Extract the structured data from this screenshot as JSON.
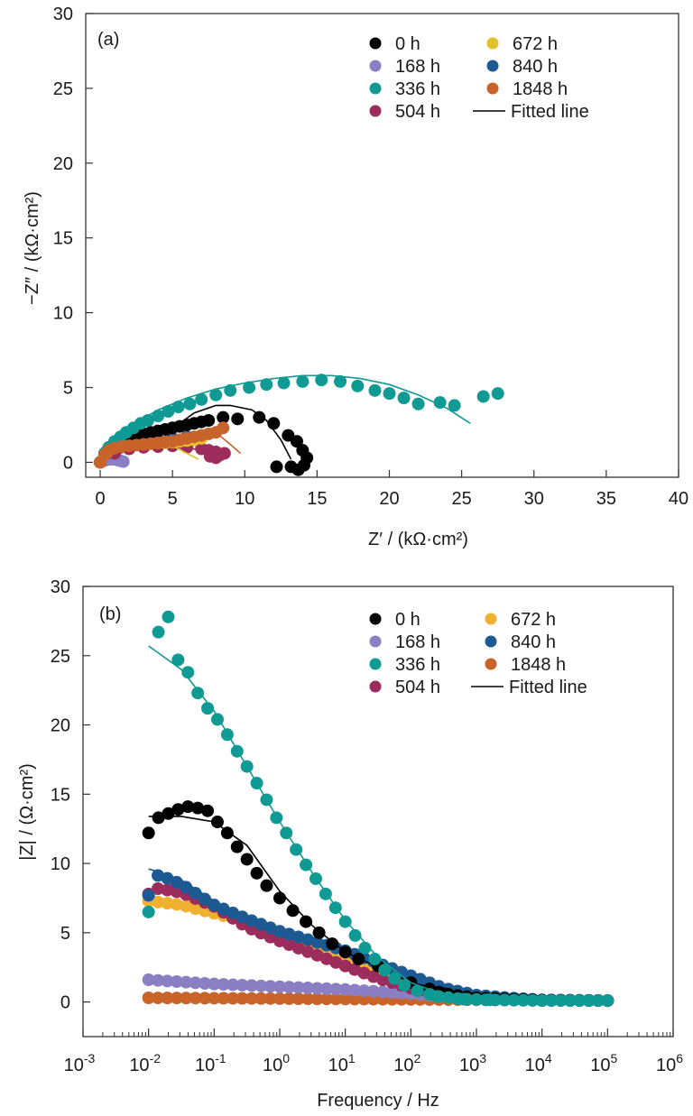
{
  "chart_data": [
    {
      "type": "scatter",
      "panel_label": "(a)",
      "title": "",
      "xlabel": "Z′ / (kΩ·cm²)",
      "ylabel": "−Z″ / (kΩ·cm²)",
      "xlim": [
        -1,
        40
      ],
      "ylim": [
        -1,
        30
      ],
      "xticks": [
        0,
        5,
        10,
        15,
        20,
        25,
        30,
        35,
        40
      ],
      "yticks": [
        0,
        5,
        10,
        15,
        20,
        25,
        30
      ],
      "grid": false,
      "legend_position": "top-right",
      "legend": [
        {
          "label": "0 h",
          "color": "#000000"
        },
        {
          "label": "168 h",
          "color": "#8b7fc4"
        },
        {
          "label": "336 h",
          "color": "#0f9a94"
        },
        {
          "label": "504 h",
          "color": "#9b2c5c"
        },
        {
          "label": "672 h",
          "color": "#e3c12a"
        },
        {
          "label": "840 h",
          "color": "#1d5a94"
        },
        {
          "label": "1848 h",
          "color": "#c8642a"
        },
        {
          "label": "Fitted line",
          "color": "#000000",
          "line": true
        }
      ],
      "series": [
        {
          "name": "168 h",
          "color": "#8b7fc4",
          "x": [
            0,
            0.2,
            0.4,
            0.6,
            0.8,
            1.0,
            1.2,
            1.4,
            1.6
          ],
          "y": [
            0,
            0.1,
            0.15,
            0.2,
            0.2,
            0.2,
            0.15,
            0.1,
            0.05
          ],
          "fit_x": [
            0,
            0.5,
            1.0,
            1.5
          ],
          "fit_y": [
            0,
            0.15,
            0.18,
            0.1
          ]
        },
        {
          "name": "504 h",
          "color": "#9b2c5c",
          "x": [
            0,
            1,
            2,
            3,
            4,
            5,
            6,
            7,
            7.5,
            8,
            8.3,
            8.6,
            8.0,
            7.6
          ],
          "y": [
            0,
            0.6,
            0.9,
            1.0,
            1.05,
            1.1,
            1.0,
            0.9,
            0.8,
            0.7,
            0.5,
            0.6,
            0.3,
            0.4
          ],
          "fit_x": [
            0,
            2,
            4,
            6,
            8
          ],
          "fit_y": [
            0,
            0.85,
            1.0,
            0.95,
            0.7
          ]
        },
        {
          "name": "672 h",
          "color": "#e3c12a",
          "x": [
            0,
            0.5,
            1,
            1.5,
            2,
            2.5,
            3,
            3.5,
            4,
            4.5,
            5,
            5.5,
            6,
            6.5,
            7
          ],
          "y": [
            0,
            0.7,
            1.0,
            1.1,
            1.15,
            1.2,
            1.2,
            1.25,
            1.3,
            1.3,
            1.35,
            1.4,
            1.45,
            1.5,
            1.6
          ],
          "fit_x": [
            0,
            1,
            2,
            3,
            4,
            5,
            6,
            6.8
          ],
          "fit_y": [
            0,
            1.0,
            1.15,
            1.2,
            1.25,
            1.1,
            0.6,
            0.2
          ]
        },
        {
          "name": "840 h",
          "color": "#1d5a94",
          "x": [
            0,
            0.5,
            1,
            1.5,
            2,
            3,
            4,
            5,
            6
          ],
          "y": [
            0,
            0.8,
            1.1,
            1.25,
            1.3,
            1.4,
            1.5,
            1.6,
            1.7
          ],
          "fit_x": [
            0,
            1,
            2,
            4,
            6
          ],
          "fit_y": [
            0,
            1.1,
            1.3,
            1.5,
            1.7
          ]
        },
        {
          "name": "0 h",
          "color": "#000000",
          "x": [
            1.5,
            2,
            2.5,
            3,
            3.5,
            4,
            4.5,
            5,
            5.5,
            6,
            6.5,
            7,
            7.5,
            8.5,
            9.5,
            11,
            12,
            13,
            13.6,
            14,
            14.3,
            14.1,
            13.7,
            13.2,
            12.2
          ],
          "y": [
            1.6,
            1.7,
            1.8,
            1.9,
            2.0,
            2.1,
            2.2,
            2.3,
            2.4,
            2.5,
            2.6,
            2.7,
            2.8,
            3.0,
            2.9,
            3.0,
            2.6,
            1.8,
            1.4,
            0.8,
            0.3,
            -0.2,
            -0.5,
            -0.3,
            -0.3
          ],
          "fit_x": [
            1.5,
            3,
            4.5,
            5.5,
            6.5,
            8,
            9,
            10.5,
            11.5,
            12.5,
            13.2
          ],
          "fit_y": [
            1.6,
            1.9,
            2.2,
            2.6,
            3.3,
            3.8,
            3.8,
            3.5,
            2.8,
            1.5,
            0.2
          ]
        },
        {
          "name": "336 h",
          "color": "#0f9a94",
          "x": [
            0,
            0.3,
            0.6,
            1.0,
            1.4,
            1.8,
            2.3,
            2.8,
            3.3,
            4.0,
            4.7,
            5.4,
            6.2,
            7.0,
            8.0,
            9.0,
            10.3,
            11.5,
            12.7,
            14.0,
            15.3,
            16.6,
            17.8,
            19.0,
            20.0,
            21.0,
            22.0,
            23.5,
            24.5,
            26.5,
            27.5
          ],
          "y": [
            0,
            0.6,
            1.0,
            1.4,
            1.7,
            2.0,
            2.3,
            2.6,
            2.8,
            3.1,
            3.4,
            3.7,
            3.9,
            4.2,
            4.5,
            4.8,
            5.0,
            5.2,
            5.3,
            5.4,
            5.5,
            5.4,
            5.1,
            4.8,
            4.6,
            4.3,
            3.9,
            4.0,
            3.8,
            4.4,
            4.6
          ],
          "fit_x": [
            0,
            1,
            2,
            4,
            6,
            8,
            10,
            12,
            14,
            16,
            18,
            20,
            22,
            24,
            25.6
          ],
          "fit_y": [
            0,
            1.5,
            2.4,
            3.5,
            4.3,
            4.9,
            5.3,
            5.6,
            5.8,
            5.8,
            5.6,
            5.2,
            4.5,
            3.6,
            2.6
          ]
        },
        {
          "name": "1848 h",
          "color": "#c8642a",
          "x": [
            0,
            0.3,
            0.6,
            1.0,
            1.5,
            2,
            2.5,
            3,
            3.5,
            4,
            4.5,
            5,
            5.5,
            6,
            6.5,
            7,
            7.5,
            8,
            8.5
          ],
          "y": [
            0,
            0.5,
            0.8,
            0.95,
            1.05,
            1.1,
            1.15,
            1.2,
            1.25,
            1.3,
            1.35,
            1.4,
            1.5,
            1.6,
            1.7,
            1.8,
            1.9,
            2.0,
            2.3
          ],
          "fit_x": [
            0,
            1,
            2,
            3,
            4,
            5,
            6,
            7,
            8,
            9,
            9.7
          ],
          "fit_y": [
            0,
            0.9,
            1.1,
            1.2,
            1.3,
            1.4,
            1.6,
            1.8,
            2.0,
            1.2,
            0.6
          ]
        }
      ]
    },
    {
      "type": "scatter",
      "panel_label": "(b)",
      "title": "",
      "xlabel": "Frequency / Hz",
      "ylabel": "|Z| / (Ω·cm²)",
      "xscale": "log",
      "xlim_exp": [
        -3,
        6
      ],
      "ylim": [
        -2.5,
        30
      ],
      "xtick_exponents": [
        -3,
        -2,
        -1,
        0,
        1,
        2,
        3,
        4,
        5,
        6
      ],
      "yticks": [
        0,
        5,
        10,
        15,
        20,
        25,
        30
      ],
      "grid": false,
      "legend_position": "top-right",
      "legend": [
        {
          "label": "0 h",
          "color": "#000000"
        },
        {
          "label": "168 h",
          "color": "#8b7fc4"
        },
        {
          "label": "336 h",
          "color": "#0f9a94"
        },
        {
          "label": "504 h",
          "color": "#9b2c5c"
        },
        {
          "label": "672 h",
          "color": "#f0b030"
        },
        {
          "label": "840 h",
          "color": "#1d5a94"
        },
        {
          "label": "1848 h",
          "color": "#c8642a"
        },
        {
          "label": "Fitted line",
          "color": "#000000",
          "line": true
        }
      ],
      "freq_log_start": -2,
      "freq_log_end": 5,
      "points_per_decade": 7,
      "series": [
        {
          "name": "1848 h",
          "color": "#c8642a",
          "logf": [
            -2,
            5
          ],
          "z": [
            0.3,
            0.1
          ]
        },
        {
          "name": "168 h",
          "color": "#8b7fc4",
          "logf": [
            -2,
            -1,
            0,
            1,
            2,
            3,
            5
          ],
          "z": [
            1.6,
            1.3,
            1.1,
            0.9,
            0.6,
            0.2,
            0.1
          ]
        },
        {
          "name": "672 h",
          "color": "#f0b030",
          "logf": [
            -2,
            -1.5,
            -1,
            -0.5,
            0,
            0.5,
            1,
            1.5,
            2,
            2.5,
            3,
            4,
            5
          ],
          "z": [
            7.3,
            7.0,
            6.4,
            5.8,
            5.0,
            4.1,
            3.3,
            2.4,
            1.4,
            0.7,
            0.3,
            0.15,
            0.1
          ],
          "fit": [
            7.5,
            7.1,
            6.4,
            5.8,
            5.0,
            4.1,
            3.3,
            2.4,
            1.4,
            0.7,
            0.3,
            0.15,
            0.1
          ]
        },
        {
          "name": "504 h",
          "color": "#9b2c5c",
          "logf": [
            -2,
            -1.85,
            -1.5,
            -1,
            -0.5,
            0,
            0.5,
            1,
            1.5,
            2,
            2.5,
            3,
            4,
            5
          ],
          "z": [
            7.8,
            8.2,
            7.9,
            6.9,
            5.4,
            4.4,
            3.5,
            2.6,
            1.7,
            1.0,
            0.5,
            0.2,
            0.12,
            0.1
          ],
          "fit": [
            8.0,
            8.0,
            7.6,
            6.7,
            5.4,
            4.4,
            3.5,
            2.6,
            1.7,
            1.0,
            0.5,
            0.2,
            0.12,
            0.1
          ]
        },
        {
          "name": "840 h",
          "color": "#1d5a94",
          "logf": [
            -2,
            -1.85,
            -1.5,
            -1,
            -0.5,
            0,
            0.5,
            1,
            1.5,
            2,
            2.5,
            3,
            3.5,
            4,
            5
          ],
          "z": [
            7.7,
            9.2,
            8.5,
            7.0,
            6.0,
            5.1,
            4.4,
            3.7,
            2.8,
            1.9,
            1.0,
            0.5,
            0.3,
            0.15,
            0.1
          ],
          "fit": [
            9.6,
            9.4,
            8.8,
            7.3,
            6.0,
            5.1,
            4.4,
            3.7,
            2.8,
            1.9,
            1.0,
            0.5,
            0.3,
            0.15,
            0.1
          ]
        },
        {
          "name": "0 h",
          "color": "#000000",
          "logf": [
            -2,
            -1.85,
            -1.7,
            -1.55,
            -1.4,
            -1.25,
            -1.1,
            -0.95,
            -0.8,
            -0.65,
            -0.5,
            -0.35,
            -0.2,
            0,
            0.2,
            0.4,
            0.6,
            0.8,
            1.0,
            1.2,
            1.5,
            2,
            2.5,
            3,
            4,
            5
          ],
          "z": [
            12.2,
            13.3,
            13.6,
            13.9,
            14.1,
            14.0,
            13.8,
            13.0,
            12.2,
            11.2,
            10.3,
            9.3,
            8.4,
            7.5,
            6.6,
            5.8,
            5.0,
            4.2,
            3.6,
            3.1,
            2.6,
            1.4,
            0.6,
            0.3,
            0.12,
            0.1
          ],
          "fit_logf": [
            -2,
            -1.5,
            -1,
            -0.5,
            0,
            0.5,
            1,
            1.5,
            2,
            3,
            5
          ],
          "fit": [
            13.4,
            13.4,
            13.0,
            11.3,
            8.0,
            5.5,
            3.6,
            2.5,
            1.4,
            0.3,
            0.1
          ]
        },
        {
          "name": "336 h",
          "color": "#0f9a94",
          "logf": [
            -2,
            -1.85,
            -1.7,
            -1.55,
            -1.4,
            -1.25,
            -1.1,
            -0.95,
            -0.8,
            -0.65,
            -0.5,
            -0.35,
            -0.2,
            -0.05,
            0.1,
            0.25,
            0.4,
            0.55,
            0.7,
            0.85,
            1.0,
            1.15,
            1.3,
            1.45,
            1.6,
            1.75,
            1.9,
            2.1,
            2.4,
            2.8,
            3.2,
            4,
            5
          ],
          "z": [
            6.5,
            26.7,
            27.8,
            24.7,
            23.8,
            22.3,
            21.2,
            20.4,
            19.3,
            18.1,
            17.0,
            15.8,
            14.6,
            13.3,
            12.2,
            11.0,
            9.9,
            8.9,
            7.8,
            6.8,
            5.8,
            4.8,
            3.9,
            3.1,
            2.3,
            1.7,
            1.2,
            0.8,
            0.4,
            0.2,
            0.15,
            0.1,
            0.1
          ],
          "fit_logf": [
            -2,
            -1.5,
            -1,
            -0.5,
            0,
            0.5,
            1,
            1.5,
            2,
            2.5,
            3,
            4,
            5
          ],
          "fit": [
            25.7,
            24.0,
            21.0,
            17.0,
            13.0,
            9.3,
            5.9,
            3.2,
            1.4,
            0.5,
            0.2,
            0.1,
            0.1
          ]
        }
      ]
    }
  ]
}
